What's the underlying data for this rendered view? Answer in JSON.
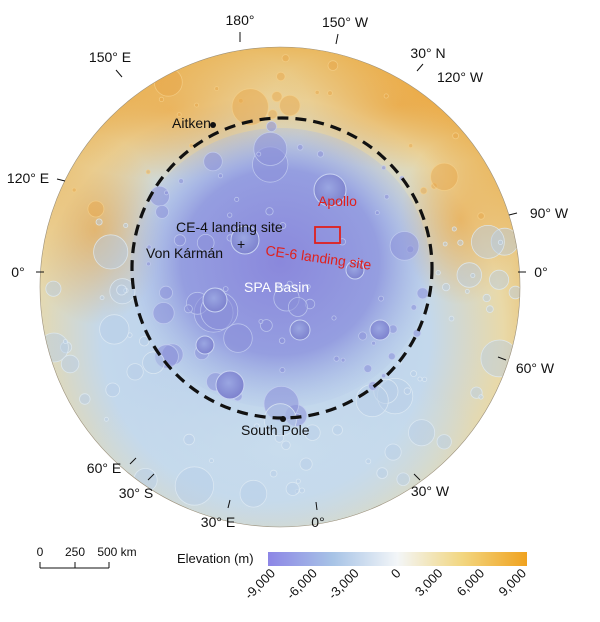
{
  "graticule_labels": [
    {
      "id": "lon-180",
      "text": "180°"
    },
    {
      "id": "lon-150w-top",
      "text": "150° W"
    },
    {
      "id": "lon-150e",
      "text": "150° E"
    },
    {
      "id": "lat-30n",
      "text": "30° N"
    },
    {
      "id": "lon-120w",
      "text": "120° W"
    },
    {
      "id": "lon-120e",
      "text": "120° E"
    },
    {
      "id": "lon-90w",
      "text": "90° W"
    },
    {
      "id": "lat-0-left",
      "text": "0°"
    },
    {
      "id": "lat-0-right",
      "text": "0°"
    },
    {
      "id": "lon-60w",
      "text": "60° W"
    },
    {
      "id": "lon-60e",
      "text": "60° E"
    },
    {
      "id": "lat-30s",
      "text": "30° S"
    },
    {
      "id": "lon-30w",
      "text": "30° W"
    },
    {
      "id": "lon-30e",
      "text": "30° E"
    },
    {
      "id": "lon-0-bottom",
      "text": "0°"
    }
  ],
  "features": {
    "aitken": "Aitken",
    "apollo": "Apollo",
    "ce4_site": "CE-4 landing site",
    "ce6_site": "CE-6 landing site",
    "von_karman": "Von Kármán",
    "spa_basin": "SPA Basin",
    "south_pole": "South Pole",
    "ce4_marker": "+"
  },
  "legend": {
    "title": "Elevation (m)",
    "ticks": [
      "-9,000",
      "-6,000",
      "-3,000",
      "0",
      "3,000",
      "6,000",
      "9,000"
    ],
    "colors": {
      "low": "#8d86e6",
      "mid_low": "#a7c3e6",
      "zero": "#f3f6f8",
      "mid_high": "#f2d680",
      "high": "#f0a21f"
    }
  },
  "scale_bar": {
    "labels": [
      "0",
      "250",
      "500 km"
    ]
  },
  "colors": {
    "highlands": "#eeb85a",
    "basin_deep": "#8f93de",
    "basin_mid": "#a8bfe6",
    "south_light": "#c6dcec",
    "basin_boundary": "#111111",
    "ce6_box": "#e0201c"
  }
}
